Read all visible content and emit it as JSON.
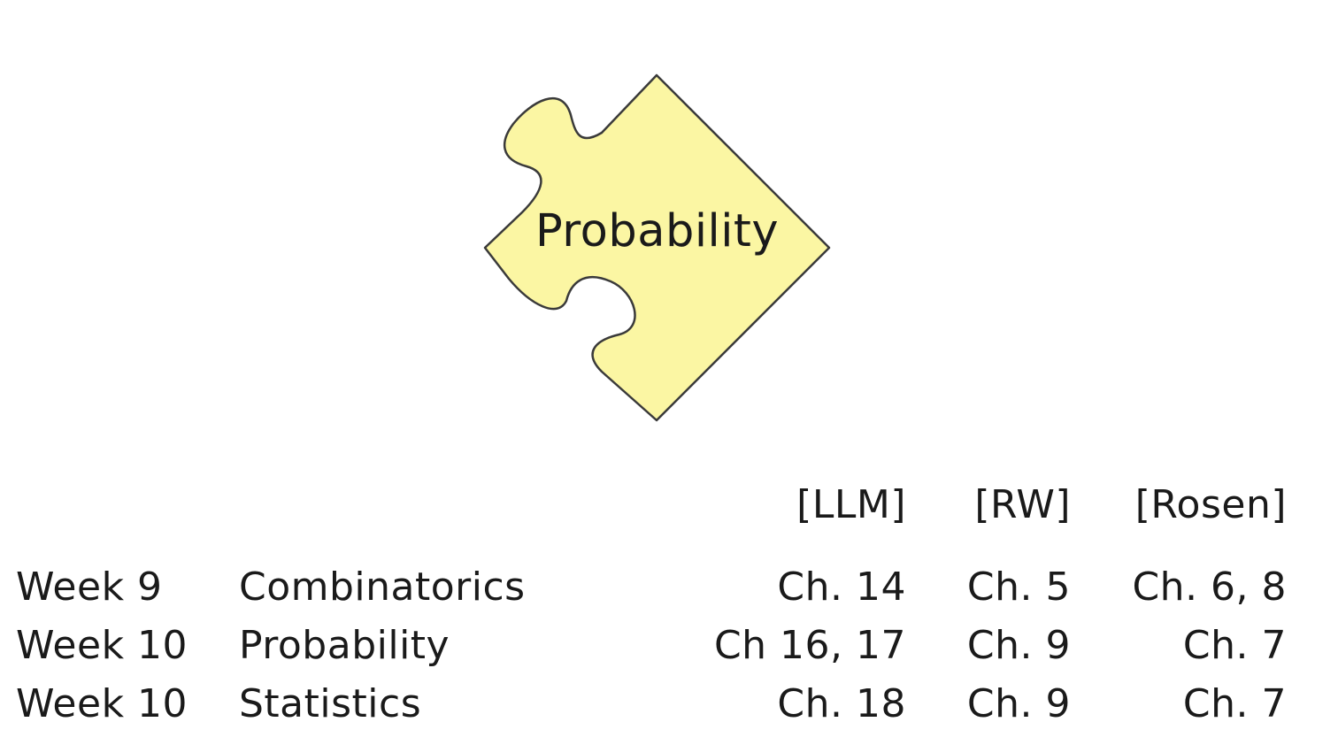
{
  "puzzle": {
    "label": "Probability",
    "fill_color": "#fbf6a3",
    "stroke_color": "#3a3a3a",
    "icon": "puzzle-piece-icon"
  },
  "table": {
    "headers": {
      "llm": "[LLM]",
      "rw": "[RW]",
      "rosen": "[Rosen]"
    },
    "rows": [
      {
        "week": "Week 9",
        "topic": "Combinatorics",
        "llm": "Ch. 14",
        "rw": "Ch. 5",
        "rosen": "Ch. 6, 8"
      },
      {
        "week": "Week 10",
        "topic": "Probability",
        "llm": "Ch 16, 17",
        "rw": "Ch. 9",
        "rosen": "Ch. 7"
      },
      {
        "week": "Week 10",
        "topic": "Statistics",
        "llm": "Ch. 18",
        "rw": "Ch. 9",
        "rosen": "Ch. 7"
      }
    ]
  }
}
